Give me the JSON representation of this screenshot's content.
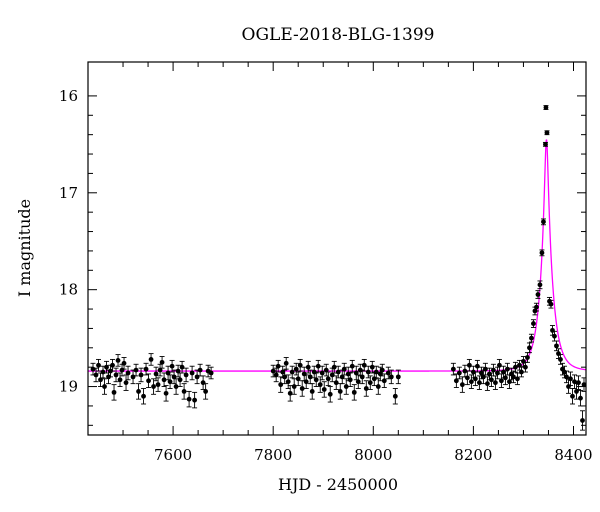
{
  "chart_data": {
    "type": "scatter",
    "title": "OGLE-2018-BLG-1399",
    "xlabel": "HJD - 2450000",
    "ylabel": "I magnitude",
    "xlim": [
      7430,
      8425
    ],
    "ylim": [
      19.5,
      15.65
    ],
    "y_inverted": true,
    "grid": false,
    "xticks": [
      7600,
      7800,
      8000,
      8200,
      8400
    ],
    "yticks": [
      16,
      17,
      18,
      19
    ],
    "model": {
      "name": "",
      "color": "#ff00ff",
      "baseline_mag": 18.84,
      "t0": 8346,
      "peak_mag": 16.45,
      "tE": 22,
      "u0": 0.15
    },
    "series": [
      {
        "name": "",
        "color": "#000000",
        "points": [
          [
            7440,
            18.82,
            0.06
          ],
          [
            7446,
            18.88,
            0.07
          ],
          [
            7451,
            18.78,
            0.06
          ],
          [
            7455,
            18.93,
            0.07
          ],
          [
            7460,
            18.85,
            0.06
          ],
          [
            7463,
            19.0,
            0.08
          ],
          [
            7467,
            18.8,
            0.06
          ],
          [
            7471,
            18.9,
            0.07
          ],
          [
            7475,
            18.84,
            0.06
          ],
          [
            7479,
            18.78,
            0.06
          ],
          [
            7482,
            19.06,
            0.08
          ],
          [
            7486,
            18.88,
            0.07
          ],
          [
            7490,
            18.73,
            0.06
          ],
          [
            7494,
            18.93,
            0.07
          ],
          [
            7498,
            18.83,
            0.06
          ],
          [
            7502,
            18.76,
            0.06
          ],
          [
            7506,
            18.96,
            0.08
          ],
          [
            7510,
            18.86,
            0.07
          ],
          [
            7520,
            18.9,
            0.07
          ],
          [
            7526,
            18.83,
            0.06
          ],
          [
            7531,
            19.05,
            0.08
          ],
          [
            7536,
            18.88,
            0.07
          ],
          [
            7541,
            19.1,
            0.08
          ],
          [
            7546,
            18.82,
            0.06
          ],
          [
            7551,
            18.94,
            0.07
          ],
          [
            7556,
            18.72,
            0.06
          ],
          [
            7561,
            19.0,
            0.08
          ],
          [
            7566,
            18.87,
            0.07
          ],
          [
            7570,
            18.98,
            0.07
          ],
          [
            7574,
            18.83,
            0.06
          ],
          [
            7578,
            18.75,
            0.06
          ],
          [
            7582,
            18.93,
            0.07
          ],
          [
            7586,
            19.07,
            0.08
          ],
          [
            7590,
            18.86,
            0.07
          ],
          [
            7594,
            18.95,
            0.07
          ],
          [
            7598,
            18.79,
            0.06
          ],
          [
            7602,
            18.9,
            0.07
          ],
          [
            7606,
            19.0,
            0.08
          ],
          [
            7610,
            18.84,
            0.06
          ],
          [
            7614,
            18.93,
            0.07
          ],
          [
            7618,
            18.8,
            0.06
          ],
          [
            7622,
            19.05,
            0.08
          ],
          [
            7626,
            18.88,
            0.07
          ],
          [
            7632,
            19.13,
            0.08
          ],
          [
            7638,
            18.86,
            0.07
          ],
          [
            7643,
            19.14,
            0.08
          ],
          [
            7648,
            18.9,
            0.07
          ],
          [
            7654,
            18.83,
            0.06
          ],
          [
            7660,
            18.96,
            0.07
          ],
          [
            7665,
            19.05,
            0.08
          ],
          [
            7670,
            18.84,
            0.06
          ],
          [
            7676,
            18.86,
            0.06
          ],
          [
            7800,
            18.84,
            0.06
          ],
          [
            7806,
            18.88,
            0.07
          ],
          [
            7810,
            18.79,
            0.06
          ],
          [
            7815,
            18.98,
            0.08
          ],
          [
            7819,
            18.85,
            0.06
          ],
          [
            7823,
            18.9,
            0.07
          ],
          [
            7826,
            18.76,
            0.06
          ],
          [
            7830,
            18.95,
            0.07
          ],
          [
            7834,
            19.07,
            0.08
          ],
          [
            7838,
            18.85,
            0.06
          ],
          [
            7842,
            19.0,
            0.08
          ],
          [
            7846,
            18.82,
            0.06
          ],
          [
            7850,
            18.92,
            0.07
          ],
          [
            7854,
            18.78,
            0.06
          ],
          [
            7858,
            19.02,
            0.08
          ],
          [
            7862,
            18.87,
            0.07
          ],
          [
            7866,
            18.95,
            0.07
          ],
          [
            7870,
            18.8,
            0.06
          ],
          [
            7874,
            18.9,
            0.07
          ],
          [
            7878,
            19.05,
            0.08
          ],
          [
            7882,
            18.85,
            0.06
          ],
          [
            7886,
            18.93,
            0.07
          ],
          [
            7890,
            18.79,
            0.06
          ],
          [
            7894,
            18.98,
            0.08
          ],
          [
            7898,
            18.86,
            0.07
          ],
          [
            7902,
            19.03,
            0.08
          ],
          [
            7906,
            18.83,
            0.06
          ],
          [
            7910,
            18.92,
            0.07
          ],
          [
            7914,
            19.08,
            0.08
          ],
          [
            7918,
            18.88,
            0.07
          ],
          [
            7922,
            18.8,
            0.06
          ],
          [
            7926,
            18.96,
            0.07
          ],
          [
            7930,
            18.85,
            0.06
          ],
          [
            7934,
            19.05,
            0.08
          ],
          [
            7938,
            18.9,
            0.07
          ],
          [
            7942,
            18.82,
            0.06
          ],
          [
            7946,
            19.0,
            0.08
          ],
          [
            7950,
            18.87,
            0.07
          ],
          [
            7954,
            18.93,
            0.07
          ],
          [
            7958,
            18.79,
            0.06
          ],
          [
            7962,
            19.06,
            0.08
          ],
          [
            7966,
            18.86,
            0.07
          ],
          [
            7970,
            18.95,
            0.07
          ],
          [
            7974,
            18.83,
            0.06
          ],
          [
            7978,
            18.9,
            0.07
          ],
          [
            7982,
            18.78,
            0.06
          ],
          [
            7986,
            19.02,
            0.08
          ],
          [
            7990,
            18.85,
            0.06
          ],
          [
            7994,
            18.96,
            0.07
          ],
          [
            7998,
            18.8,
            0.06
          ],
          [
            8002,
            18.92,
            0.07
          ],
          [
            8006,
            18.85,
            0.06
          ],
          [
            8010,
            19.0,
            0.08
          ],
          [
            8014,
            18.87,
            0.07
          ],
          [
            8018,
            18.83,
            0.06
          ],
          [
            8022,
            18.94,
            0.07
          ],
          [
            8030,
            18.86,
            0.06
          ],
          [
            8036,
            18.9,
            0.07
          ],
          [
            8044,
            19.1,
            0.08
          ],
          [
            8050,
            18.9,
            0.07
          ],
          [
            8160,
            18.82,
            0.06
          ],
          [
            8166,
            18.94,
            0.07
          ],
          [
            8172,
            18.86,
            0.06
          ],
          [
            8178,
            18.98,
            0.08
          ],
          [
            8183,
            18.84,
            0.06
          ],
          [
            8188,
            18.91,
            0.07
          ],
          [
            8192,
            18.78,
            0.06
          ],
          [
            8196,
            18.95,
            0.07
          ],
          [
            8200,
            18.85,
            0.06
          ],
          [
            8204,
            18.92,
            0.07
          ],
          [
            8208,
            18.79,
            0.06
          ],
          [
            8212,
            18.96,
            0.07
          ],
          [
            8216,
            18.86,
            0.06
          ],
          [
            8220,
            18.9,
            0.07
          ],
          [
            8224,
            18.82,
            0.06
          ],
          [
            8228,
            18.97,
            0.07
          ],
          [
            8232,
            18.87,
            0.06
          ],
          [
            8236,
            18.93,
            0.07
          ],
          [
            8240,
            18.83,
            0.06
          ],
          [
            8244,
            18.96,
            0.07
          ],
          [
            8248,
            18.86,
            0.06
          ],
          [
            8252,
            18.78,
            0.06
          ],
          [
            8256,
            18.94,
            0.07
          ],
          [
            8260,
            18.85,
            0.06
          ],
          [
            8264,
            18.91,
            0.07
          ],
          [
            8268,
            18.82,
            0.06
          ],
          [
            8272,
            18.95,
            0.07
          ],
          [
            8276,
            18.87,
            0.06
          ],
          [
            8280,
            18.9,
            0.06
          ],
          [
            8284,
            18.8,
            0.05
          ],
          [
            8288,
            18.92,
            0.06
          ],
          [
            8292,
            18.78,
            0.05
          ],
          [
            8296,
            18.85,
            0.05
          ],
          [
            8300,
            18.74,
            0.05
          ],
          [
            8304,
            18.8,
            0.05
          ],
          [
            8308,
            18.7,
            0.05
          ],
          [
            8312,
            18.6,
            0.05
          ],
          [
            8316,
            18.5,
            0.04
          ],
          [
            8320,
            18.35,
            0.04
          ],
          [
            8323,
            18.22,
            0.04
          ],
          [
            8326,
            18.18,
            0.04
          ],
          [
            8329,
            18.05,
            0.04
          ],
          [
            8333,
            17.95,
            0.04
          ],
          [
            8337,
            17.62,
            0.03
          ],
          [
            8340,
            17.3,
            0.03
          ],
          [
            8344,
            16.5,
            0.02
          ],
          [
            8345,
            16.12,
            0.02
          ],
          [
            8347,
            16.38,
            0.02
          ],
          [
            8352,
            18.12,
            0.04
          ],
          [
            8355,
            18.15,
            0.04
          ],
          [
            8358,
            18.42,
            0.05
          ],
          [
            8362,
            18.48,
            0.05
          ],
          [
            8366,
            18.58,
            0.05
          ],
          [
            8370,
            18.66,
            0.05
          ],
          [
            8374,
            18.72,
            0.05
          ],
          [
            8378,
            18.82,
            0.06
          ],
          [
            8382,
            18.85,
            0.06
          ],
          [
            8386,
            18.9,
            0.06
          ],
          [
            8390,
            19.0,
            0.07
          ],
          [
            8394,
            18.92,
            0.07
          ],
          [
            8398,
            19.1,
            0.08
          ],
          [
            8402,
            18.95,
            0.07
          ],
          [
            8406,
            19.05,
            0.08
          ],
          [
            8410,
            18.96,
            0.07
          ],
          [
            8414,
            19.12,
            0.08
          ],
          [
            8418,
            19.35,
            0.1
          ],
          [
            8421,
            18.98,
            0.07
          ]
        ]
      }
    ]
  }
}
